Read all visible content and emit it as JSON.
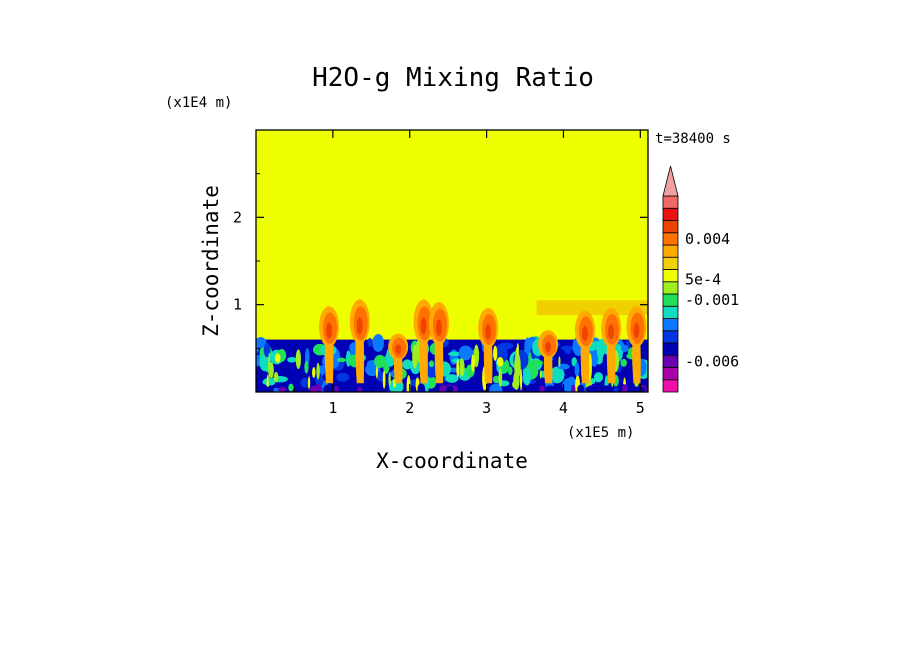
{
  "chart_data": {
    "type": "heatmap",
    "title": "H2O-g Mixing Ratio",
    "xlabel": "X-coordinate",
    "ylabel": "Z-coordinate",
    "x_unit": "(x1E5 m)",
    "y_unit": "(x1E4 m)",
    "time_label": "t=38400 s",
    "xlim": [
      0,
      5.1
    ],
    "ylim": [
      0,
      3.0
    ],
    "x_ticks": [
      {
        "value": 1,
        "label": "1"
      },
      {
        "value": 2,
        "label": "2"
      },
      {
        "value": 3,
        "label": "3"
      },
      {
        "value": 4,
        "label": "4"
      },
      {
        "value": 5,
        "label": "5"
      }
    ],
    "y_ticks": [
      {
        "value": 1,
        "label": "1"
      },
      {
        "value": 2,
        "label": "2"
      }
    ],
    "background_level_color": "#eeff00",
    "boundary_layer_top": 0.6,
    "upper_layer": {
      "x_start": 3.65,
      "x_end": 5.1,
      "z_top": 1.05
    },
    "plumes": [
      {
        "x": 0.95,
        "z_top": 1.0
      },
      {
        "x": 1.35,
        "z_top": 1.08
      },
      {
        "x": 1.85,
        "z_top": 0.68
      },
      {
        "x": 2.18,
        "z_top": 1.08
      },
      {
        "x": 2.38,
        "z_top": 1.05
      },
      {
        "x": 3.02,
        "z_top": 0.98
      },
      {
        "x": 3.8,
        "z_top": 0.72
      },
      {
        "x": 4.28,
        "z_top": 0.95
      },
      {
        "x": 4.62,
        "z_top": 0.98
      },
      {
        "x": 4.95,
        "z_top": 1.0
      }
    ],
    "colorbar": {
      "colors": [
        "#ee10aa",
        "#aa00aa",
        "#6a00b0",
        "#0000b4",
        "#0036e0",
        "#0a78ff",
        "#10dcbe",
        "#20e05a",
        "#a0ee20",
        "#eeff00",
        "#f0d000",
        "#ffaa00",
        "#ff7200",
        "#ee4400",
        "#e81010",
        "#f06868",
        "#f0a0a0"
      ],
      "labels": [
        {
          "text": "0.004",
          "level": 12.5
        },
        {
          "text": "5e-4",
          "level": 9.2
        },
        {
          "text": "-0.001",
          "level": 7.5
        },
        {
          "text": "-0.006",
          "level": 2.5
        }
      ]
    }
  }
}
